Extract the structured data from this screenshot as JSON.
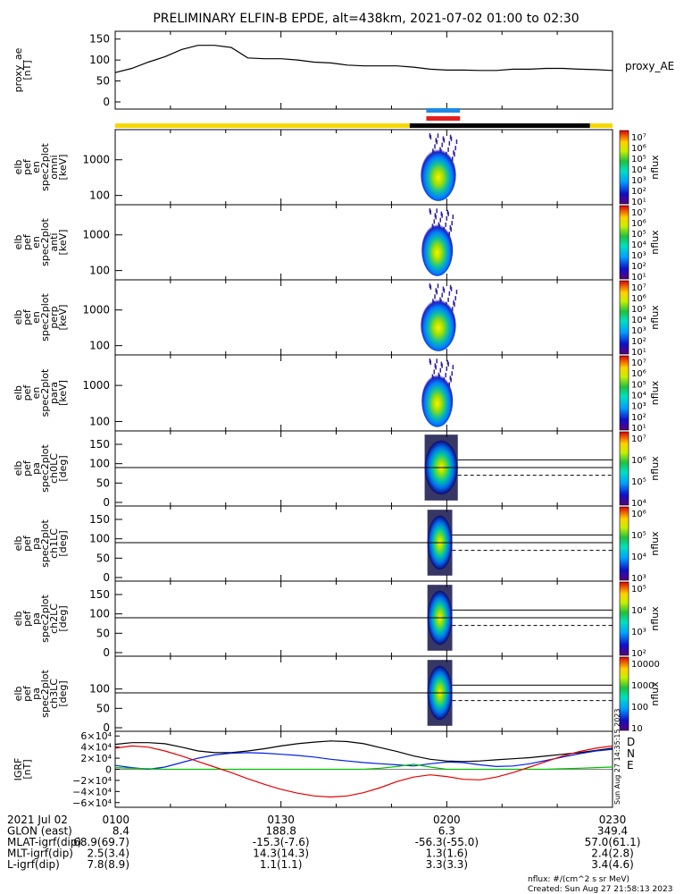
{
  "title": "PRELIMINARY ELFIN-B EPDE, alt=438km, 2021-07-02 01:00 to 02:30",
  "colors": {
    "yellow": "#f5d800",
    "black": "#000000",
    "blue": "#1e8ae6",
    "red": "#e61e1e",
    "geo_x": "#000000",
    "geo_y": "#0020e6",
    "geo_z": "#00c000",
    "geo_d": "#e60000"
  },
  "chart_data": [
    {
      "type": "line",
      "name": "proxy_ae",
      "ylabel": [
        "proxy_ae",
        "[nT]"
      ],
      "right_label": "proxy_AE",
      "yticks": [
        "150",
        "100",
        "50",
        "0"
      ],
      "ylim": [
        0,
        160
      ],
      "x_minutes": [
        0,
        3,
        6,
        9,
        12,
        15,
        18,
        21,
        24,
        27,
        30,
        33,
        36,
        39,
        42,
        45,
        48,
        51,
        54,
        57,
        60,
        63,
        66,
        69,
        72,
        75,
        78,
        81,
        84,
        87,
        90
      ],
      "values": [
        70,
        80,
        95,
        108,
        125,
        135,
        135,
        130,
        105,
        103,
        103,
        100,
        95,
        93,
        88,
        86,
        86,
        86,
        83,
        78,
        76,
        76,
        75,
        75,
        78,
        78,
        80,
        80,
        78,
        77,
        75
      ]
    },
    {
      "type": "table",
      "name": "status_bars",
      "segments_minutes": {
        "yellow": [
          [
            0,
            53.3
          ],
          [
            85.9,
            90
          ]
        ],
        "black": [
          [
            53.3,
            85.9
          ]
        ],
        "blue": [
          [
            56.3,
            62.4
          ]
        ],
        "red": [
          [
            56.3,
            62.4
          ]
        ]
      }
    },
    {
      "type": "heatmap",
      "name": "spec_omni",
      "ylabel": [
        "elb",
        "pef",
        "en",
        "spec2plot",
        "omni",
        "[keV]"
      ],
      "yticks": [
        "1000",
        "100"
      ],
      "ylim": [
        55,
        7000
      ],
      "scale": "log",
      "colorbar_ticks": [
        "10⁷",
        "10⁶",
        "10⁵",
        "10⁴",
        "10³",
        "10²",
        "10¹"
      ],
      "colorbar_label": "nflux",
      "blob_minutes": [
        56.5,
        62.2
      ],
      "peak_minute": 58.0
    },
    {
      "type": "heatmap",
      "name": "spec_anti",
      "ylabel": [
        "elb",
        "pef",
        "en",
        "spec2plot",
        "anti",
        "[keV]"
      ],
      "yticks": [
        "1000",
        "100"
      ],
      "ylim": [
        55,
        7000
      ],
      "scale": "log",
      "colorbar_ticks": [
        "10⁷",
        "10⁶",
        "10⁵",
        "10⁴",
        "10³",
        "10²",
        "10¹"
      ],
      "colorbar_label": "nflux",
      "blob_minutes": [
        56.5,
        61.5
      ],
      "peak_minute": 57.8
    },
    {
      "type": "heatmap",
      "name": "spec_perp",
      "ylabel": [
        "elb",
        "pef",
        "en",
        "spec2plot",
        "perp",
        "[keV]"
      ],
      "yticks": [
        "1000",
        "100"
      ],
      "ylim": [
        55,
        7000
      ],
      "scale": "log",
      "colorbar_ticks": [
        "10⁷",
        "10⁶",
        "10⁵",
        "10⁴",
        "10³",
        "10²",
        "10¹"
      ],
      "colorbar_label": "nflux",
      "blob_minutes": [
        56.5,
        62.2
      ],
      "peak_minute": 58.0
    },
    {
      "type": "heatmap",
      "name": "spec_para",
      "ylabel": [
        "elb",
        "pef",
        "en",
        "spec2plot",
        "para",
        "[keV]"
      ],
      "yticks": [
        "1000",
        "100"
      ],
      "ylim": [
        55,
        7000
      ],
      "scale": "log",
      "colorbar_ticks": [
        "10⁷",
        "10⁶",
        "10⁵",
        "10⁴",
        "10³",
        "10²",
        "10¹"
      ],
      "colorbar_label": "nflux",
      "blob_minutes": [
        56.5,
        61.5
      ],
      "peak_minute": 57.8
    },
    {
      "type": "heatmap",
      "name": "pa_ch0",
      "ylabel": [
        "elb",
        "pef",
        "pa",
        "spec2plot",
        "ch0LC",
        "[deg]"
      ],
      "yticks": [
        "150",
        "100",
        "50",
        "0"
      ],
      "ylim": [
        0,
        180
      ],
      "colorbar_ticks": [
        "10⁷",
        "10⁶",
        "10⁵",
        "10⁴"
      ],
      "colorbar_label": "nflux",
      "refline": 90,
      "lc_solid": 110,
      "lc_dashed": 70,
      "blob_minutes": [
        56.0,
        62.0
      ],
      "peak_minute": 58.5
    },
    {
      "type": "heatmap",
      "name": "pa_ch1",
      "ylabel": [
        "elb",
        "pef",
        "pa",
        "spec2plot",
        "ch1LC",
        "[deg]"
      ],
      "yticks": [
        "150",
        "100",
        "50",
        "0"
      ],
      "ylim": [
        0,
        180
      ],
      "colorbar_ticks": [
        "10⁶",
        "10⁵",
        "10⁴",
        "10³"
      ],
      "colorbar_label": "nflux",
      "refline": 90,
      "lc_solid": 110,
      "lc_dashed": 70,
      "blob_minutes": [
        56.5,
        61.0
      ],
      "peak_minute": 57.8
    },
    {
      "type": "heatmap",
      "name": "pa_ch2",
      "ylabel": [
        "elb",
        "pef",
        "pa",
        "spec2plot",
        "ch2LC",
        "[deg]"
      ],
      "yticks": [
        "150",
        "100",
        "50",
        "0"
      ],
      "ylim": [
        0,
        180
      ],
      "colorbar_ticks": [
        "10⁵",
        "10⁴",
        "10³",
        "10²"
      ],
      "colorbar_label": "nflux",
      "refline": 90,
      "lc_solid": 110,
      "lc_dashed": 70,
      "blob_minutes": [
        56.5,
        61.0
      ],
      "peak_minute": 57.8
    },
    {
      "type": "heatmap",
      "name": "pa_ch3",
      "ylabel": [
        "elb",
        "pef",
        "pa",
        "spec2plot",
        "ch3LC",
        "[deg]"
      ],
      "yticks": [
        "100",
        "50",
        "0"
      ],
      "ylim": [
        0,
        180
      ],
      "colorbar_ticks": [
        "10000",
        "1000",
        "100",
        "10"
      ],
      "colorbar_label": "nflux",
      "refline": 90,
      "lc_solid": 110,
      "lc_dashed": 70,
      "blob_minutes": [
        56.5,
        61.0
      ],
      "peak_minute": 57.8
    },
    {
      "type": "line",
      "name": "igrf",
      "ylabel": [
        "IGRF",
        "[nT]"
      ],
      "yticks": [
        "6×10⁴",
        "4×10⁴",
        "2×10⁴",
        "0",
        "−2×10⁴",
        "−4×10⁴",
        "−6×10⁴"
      ],
      "ylim": [
        -62000,
        62000
      ],
      "side_labels": [
        "D",
        "N",
        "E"
      ],
      "x_minutes": [
        0,
        3,
        6,
        9,
        12,
        15,
        18,
        21,
        24,
        27,
        30,
        33,
        36,
        39,
        42,
        45,
        48,
        51,
        54,
        57,
        60,
        63,
        66,
        69,
        72,
        75,
        78,
        81,
        84,
        87,
        90
      ],
      "series": [
        {
          "name": "",
          "values": [
            45000,
            48000,
            48000,
            46000,
            40000,
            33000,
            30000,
            30000,
            33000,
            37000,
            42000,
            46000,
            49000,
            51000,
            50000,
            46000,
            39000,
            32000,
            24000,
            18000,
            15000,
            14000,
            15000,
            17000,
            19000,
            21000,
            24000,
            27000,
            30000,
            34000,
            38000
          ]
        },
        {
          "name": "",
          "values": [
            7000,
            3000,
            0,
            4000,
            12000,
            20000,
            26000,
            29000,
            30000,
            29000,
            27000,
            25000,
            22000,
            18000,
            15000,
            12000,
            10000,
            8000,
            6000,
            10000,
            13000,
            12000,
            8000,
            5000,
            6000,
            10000,
            16000,
            22000,
            28000,
            33000,
            36000
          ]
        },
        {
          "name": "",
          "values": [
            3000,
            2000,
            1000,
            0,
            0,
            0,
            0,
            0,
            0,
            0,
            0,
            0,
            0,
            0,
            0,
            0,
            2000,
            5000,
            9000,
            4000,
            0,
            0,
            0,
            0,
            0,
            0,
            0,
            1000,
            2000,
            3000,
            4000
          ]
        },
        {
          "name": "",
          "values": [
            38000,
            42000,
            40000,
            33000,
            24000,
            14000,
            4000,
            -6000,
            -17000,
            -27000,
            -36000,
            -43000,
            -48000,
            -50000,
            -48000,
            -42000,
            -33000,
            -22000,
            -14000,
            -10000,
            -13000,
            -18000,
            -19000,
            -14000,
            -6000,
            4000,
            14000,
            24000,
            32000,
            38000,
            42000
          ]
        }
      ]
    }
  ],
  "footer": {
    "rows": [
      {
        "label": "2021 Jul 02",
        "values": [
          "0100",
          "0130",
          "0200",
          "0230"
        ]
      },
      {
        "label": "GLON (east)",
        "values": [
          "8.4",
          "188.8",
          "6.3",
          "349.4"
        ]
      },
      {
        "label": "MLAT-igrf(dip)",
        "values": [
          "68.9(69.7)",
          "-15.3(-7.6)",
          "-56.3(-55.0)",
          "57.0(61.1)"
        ]
      },
      {
        "label": "MLT-igrf(dip)",
        "values": [
          "2.5(3.4)",
          "14.3(14.3)",
          "1.3(1.6)",
          "2.4(2.8)"
        ]
      },
      {
        "label": "L-igrf(dip)",
        "values": [
          "7.8(8.9)",
          "1.1(1.1)",
          "3.3(3.3)",
          "3.4(4.6)"
        ]
      }
    ],
    "units_note": "nflux: #/(cm^2 s sr MeV)",
    "created": "Created: Sun Aug 27 21:58:13 2023",
    "side_stamp": "Sun Aug 27 14:35:15 2023"
  }
}
